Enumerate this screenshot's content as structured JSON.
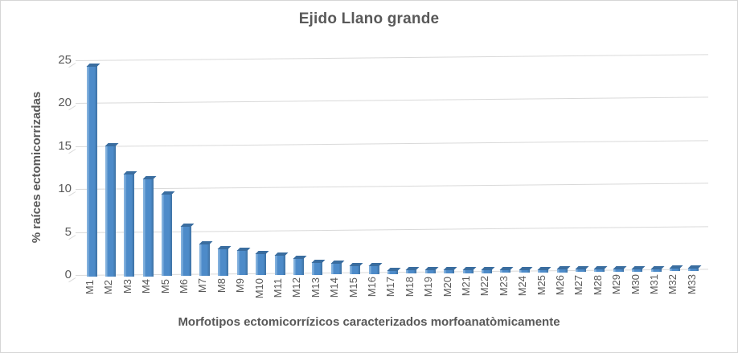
{
  "chart_data": {
    "type": "bar",
    "title": "Ejido Llano grande",
    "xlabel": "Morfotipos ectomicorrízicos caracterizados morfoanatòmicamente",
    "ylabel": "% raíces ectomicorrizadas",
    "categories": [
      "M1",
      "M2",
      "M3",
      "M4",
      "M5",
      "M6",
      "M7",
      "M8",
      "M9",
      "M10",
      "M11",
      "M12",
      "M13",
      "M14",
      "M15",
      "M16",
      "M17",
      "M18",
      "M19",
      "M20",
      "M21",
      "M22",
      "M23",
      "M24",
      "M25",
      "M26",
      "M27",
      "M28",
      "M29",
      "M30",
      "M31",
      "M32",
      "M33"
    ],
    "values": [
      24.3,
      15.0,
      11.7,
      11.1,
      9.3,
      5.5,
      3.5,
      2.9,
      2.7,
      2.3,
      2.1,
      1.7,
      1.2,
      1.1,
      0.8,
      0.7,
      0.2,
      0.2,
      0.18,
      0.15,
      0.15,
      0.15,
      0.15,
      0.12,
      0.12,
      0.12,
      0.1,
      0.1,
      0.1,
      0.1,
      0.08,
      0.08,
      0.08
    ],
    "yticks": [
      0,
      5,
      10,
      15,
      20,
      25
    ],
    "ylim": [
      0,
      25
    ],
    "grid": true,
    "legend": false,
    "style": "excel-3d-bar",
    "colors": {
      "bar_fill": "#4D8BC9",
      "bar_highlight": "#83B1DD",
      "bar_shadow": "#3E71A3",
      "bar_cap": "#3A6D9F",
      "gridline": "#D9D9D9",
      "text": "#595959",
      "background": "#FFFFFF"
    }
  }
}
